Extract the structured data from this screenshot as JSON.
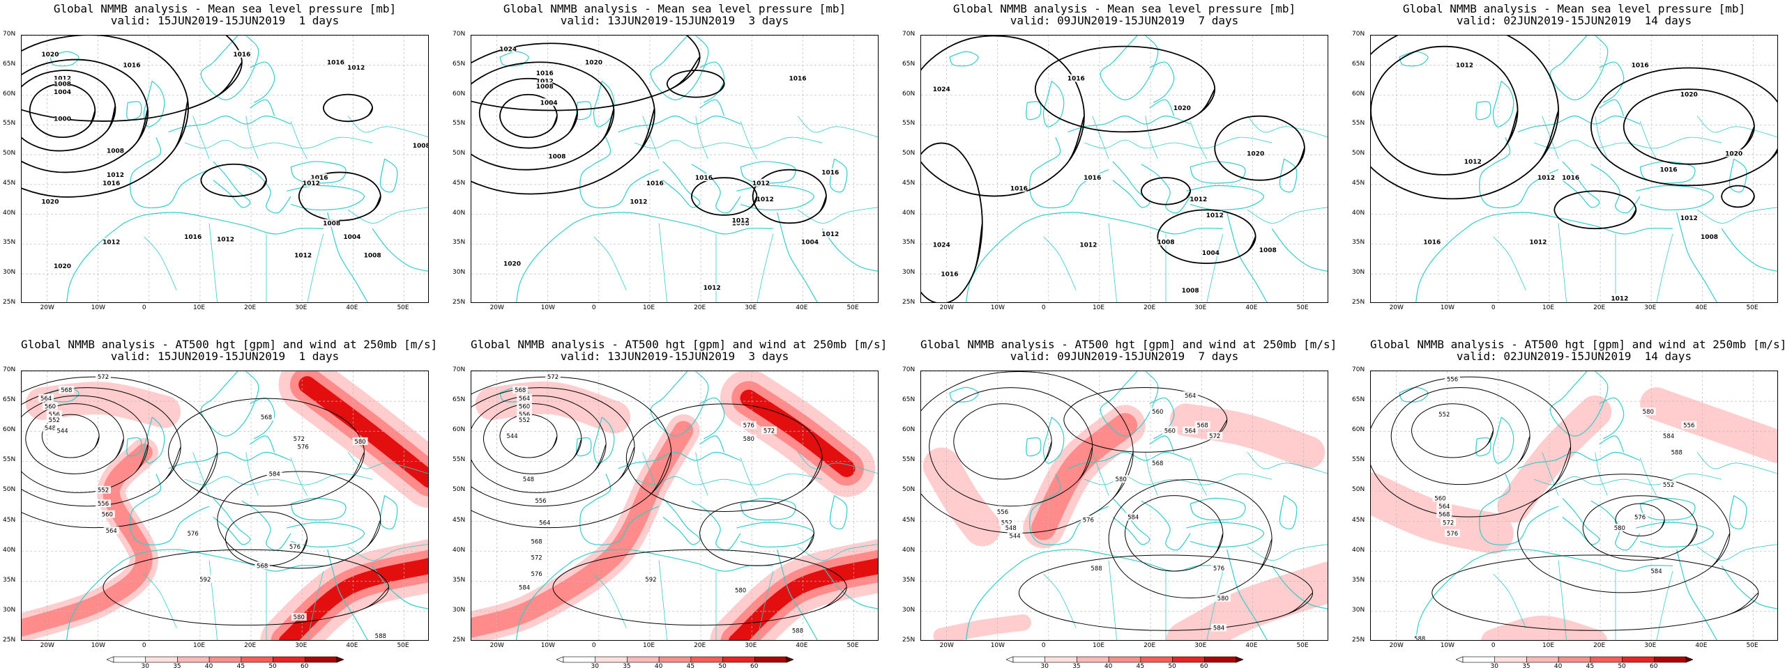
{
  "panels": [
    {
      "row": "mslp",
      "title_line1": "Global NMMB analysis - Mean sea level pressure [mb]",
      "title_line2": "valid: 15JUN2019-15JUN2019  1 days"
    },
    {
      "row": "mslp",
      "title_line1": "Global NMMB analysis - Mean sea level pressure [mb]",
      "title_line2": "valid: 13JUN2019-15JUN2019  3 days"
    },
    {
      "row": "mslp",
      "title_line1": "Global NMMB analysis - Mean sea level pressure [mb]",
      "title_line2": "valid: 09JUN2019-15JUN2019  7 days"
    },
    {
      "row": "mslp",
      "title_line1": "Global NMMB analysis - Mean sea level pressure [mb]",
      "title_line2": "valid: 02JUN2019-15JUN2019  14 days"
    },
    {
      "row": "z500",
      "title_line1": "Global NMMB analysis - AT500 hgt [gpm] and wind at 250mb [m/s]",
      "title_line2": "valid: 15JUN2019-15JUN2019  1 days"
    },
    {
      "row": "z500",
      "title_line1": "Global NMMB analysis - AT500 hgt [gpm] and wind at 250mb [m/s]",
      "title_line2": "valid: 13JUN2019-15JUN2019  3 days"
    },
    {
      "row": "z500",
      "title_line1": "Global NMMB analysis - AT500 hgt [gpm] and wind at 250mb [m/s]",
      "title_line2": "valid: 09JUN2019-15JUN2019  7 days"
    },
    {
      "row": "z500",
      "title_line1": "Global NMMB analysis - AT500 hgt [gpm] and wind at 250mb [m/s]",
      "title_line2": "valid: 02JUN2019-15JUN2019  14 days"
    }
  ],
  "axes": {
    "lon_labels": [
      "20W",
      "10W",
      "0",
      "10E",
      "20E",
      "30E",
      "40E",
      "50E"
    ],
    "lat_labels": [
      "70N",
      "65N",
      "60N",
      "55N",
      "50N",
      "45N",
      "40N",
      "35N",
      "30N",
      "25N"
    ]
  },
  "colorbar": {
    "labels": [
      "30",
      "35",
      "40",
      "45",
      "50",
      "60"
    ],
    "colors": [
      "#ffe0e0",
      "#ffb8b8",
      "#ff8c8c",
      "#ff5a5a",
      "#ee2020",
      "#b00000"
    ]
  },
  "colors": {
    "coastline": "#33cccc",
    "contour": "#000000",
    "grid": "#bbbbbb",
    "wind_light": "#ffc4c4",
    "wind_mid": "#ff7a7a",
    "wind_strong": "#e00000"
  },
  "mslp_labels": [
    [
      "1020",
      "1016",
      "1012",
      "1008",
      "1004",
      "1000",
      "1008",
      "1012",
      "1016",
      "1016",
      "1016",
      "1012",
      "1016",
      "1012",
      "1008",
      "1004",
      "1012",
      "1016",
      "1020",
      "1020",
      "1008",
      "1012",
      "1012",
      "1008"
    ],
    [
      "1024",
      "1020",
      "1016",
      "1012",
      "1008",
      "1004",
      "1008",
      "1016",
      "1016",
      "1012",
      "1016",
      "1012",
      "1012",
      "1008",
      "1004",
      "1012",
      "1020",
      "1012",
      "1016",
      "1012"
    ],
    [
      "1024",
      "1016",
      "1020",
      "1020",
      "1016",
      "1016",
      "1012",
      "1012",
      "1008",
      "1004",
      "1008",
      "1016",
      "1012",
      "1024",
      "1008"
    ],
    [
      "1012",
      "1016",
      "1020",
      "1020",
      "1016",
      "1012",
      "1012",
      "1016",
      "1012",
      "1012",
      "1016",
      "1008",
      "1012"
    ]
  ],
  "z500_labels": [
    [
      "572",
      "568",
      "564",
      "560",
      "556",
      "552",
      "548",
      "544",
      "552",
      "556",
      "560",
      "564",
      "568",
      "572",
      "576",
      "584",
      "592",
      "576",
      "580",
      "588",
      "580",
      "576",
      "568"
    ],
    [
      "572",
      "568",
      "564",
      "560",
      "556",
      "552",
      "544",
      "548",
      "556",
      "564",
      "568",
      "572",
      "576",
      "584",
      "592",
      "576",
      "580",
      "588",
      "580",
      "572"
    ],
    [
      "564",
      "560",
      "556",
      "552",
      "548",
      "544",
      "560",
      "564",
      "568",
      "572",
      "576",
      "580",
      "584",
      "588",
      "576",
      "580",
      "584",
      "568"
    ],
    [
      "556",
      "552",
      "560",
      "564",
      "568",
      "572",
      "576",
      "580",
      "584",
      "588",
      "576",
      "580",
      "584",
      "588",
      "552",
      "556"
    ]
  ]
}
